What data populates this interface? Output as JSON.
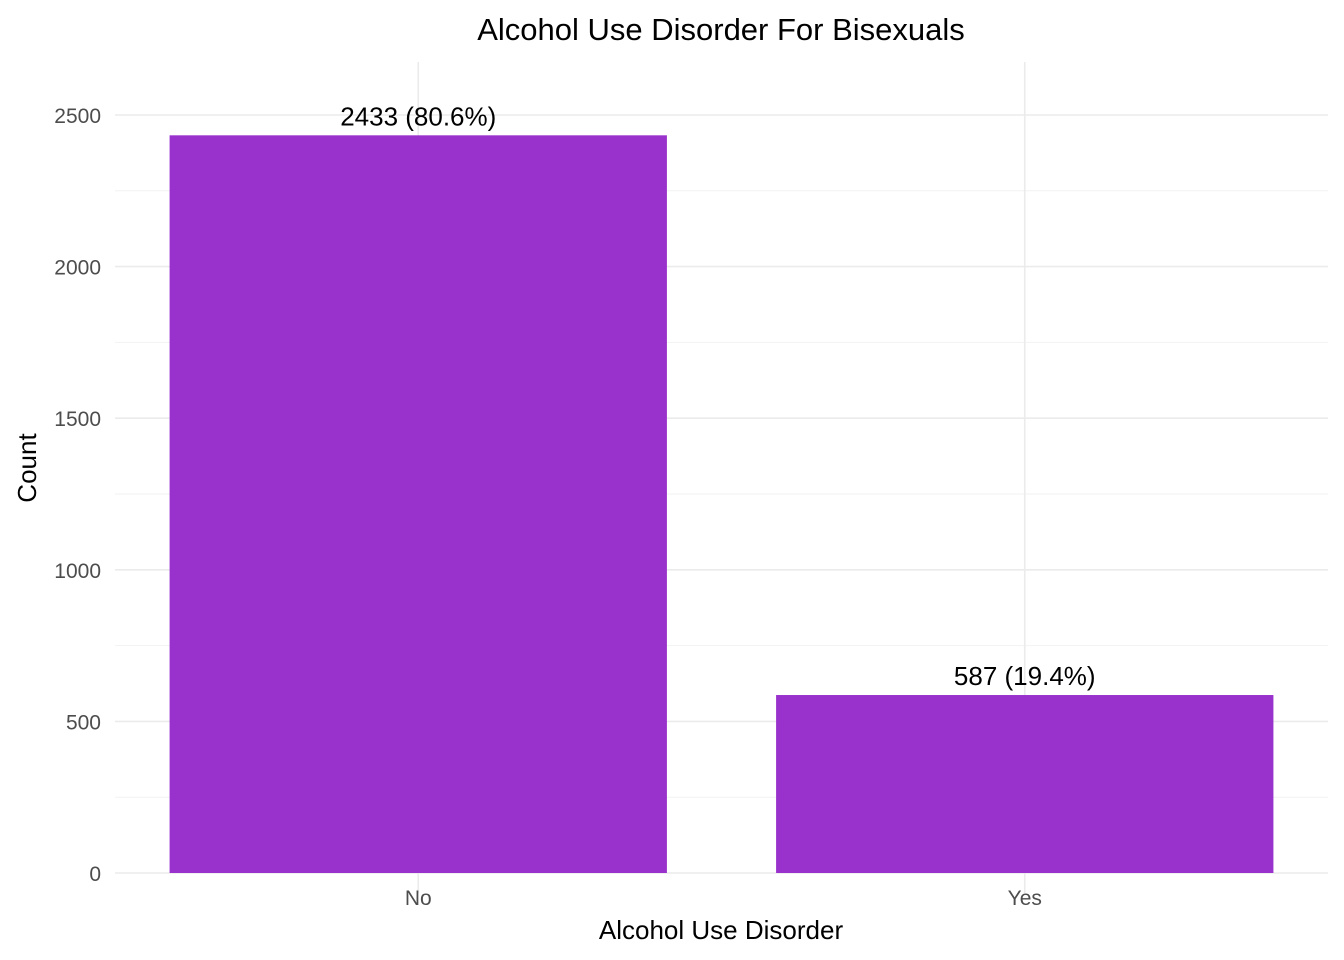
{
  "chart_data": {
    "type": "bar",
    "title": "Alcohol Use Disorder For Bisexuals",
    "xlabel": "Alcohol Use Disorder",
    "ylabel": "Count",
    "categories": [
      "No",
      "Yes"
    ],
    "values": [
      2433,
      587
    ],
    "data_labels": [
      "2433 (80.6%)",
      "587 (19.4%)"
    ],
    "ylim": [
      0,
      2600
    ],
    "y_ticks": [
      0,
      500,
      1000,
      1500,
      2000,
      2500
    ],
    "y_tick_labels": [
      "0",
      "500",
      "1000",
      "1500",
      "2000",
      "2500"
    ],
    "grid": true,
    "legend": "none",
    "bar_color": "#9932CC"
  }
}
